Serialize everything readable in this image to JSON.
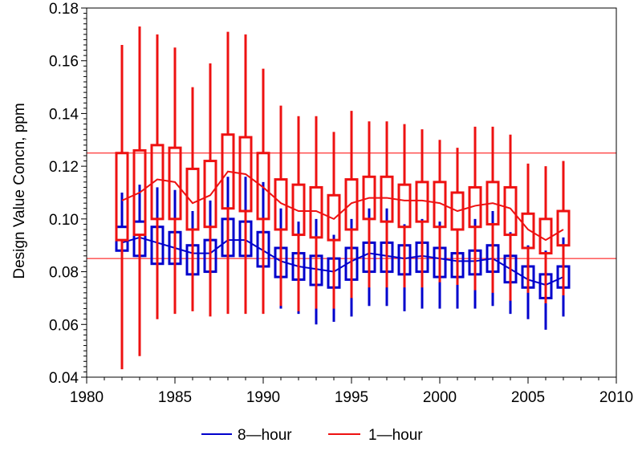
{
  "chart_data": {
    "type": "boxplot",
    "ylabel": "Design Value Concn, ppm",
    "xlabel": "",
    "xlim": [
      1980,
      2010
    ],
    "ylim": [
      0.04,
      0.18
    ],
    "x_ticks": [
      "1980",
      "1985",
      "1990",
      "1995",
      "2000",
      "2005",
      "2010"
    ],
    "y_ticks": [
      "0.04",
      "0.06",
      "0.08",
      "0.10",
      "0.12",
      "0.14",
      "0.16",
      "0.18"
    ],
    "grid": false,
    "legend_position": "bottom",
    "reference_lines": [
      {
        "y": 0.125,
        "color": "#ff0000"
      },
      {
        "y": 0.085,
        "color": "#ff0000"
      }
    ],
    "years": [
      1982,
      1983,
      1984,
      1985,
      1986,
      1987,
      1988,
      1989,
      1990,
      1991,
      1992,
      1993,
      1994,
      1995,
      1996,
      1997,
      1998,
      1999,
      2000,
      2001,
      2002,
      2003,
      2004,
      2005,
      2006,
      2007
    ],
    "series": [
      {
        "name": "8-hour",
        "color": "#0000cc",
        "q1": [
          0.088,
          0.086,
          0.083,
          0.083,
          0.079,
          0.08,
          0.086,
          0.086,
          0.082,
          0.078,
          0.077,
          0.075,
          0.074,
          0.077,
          0.08,
          0.08,
          0.079,
          0.08,
          0.078,
          0.078,
          0.079,
          0.08,
          0.076,
          0.074,
          0.07,
          0.074
        ],
        "q3": [
          0.097,
          0.099,
          0.097,
          0.095,
          0.09,
          0.092,
          0.1,
          0.099,
          0.095,
          0.089,
          0.087,
          0.086,
          0.085,
          0.089,
          0.091,
          0.091,
          0.09,
          0.091,
          0.089,
          0.087,
          0.088,
          0.09,
          0.086,
          0.082,
          0.079,
          0.082
        ],
        "whisker_low": [
          0.092,
          0.093,
          0.092,
          0.088,
          0.07,
          0.071,
          0.077,
          0.076,
          0.073,
          0.066,
          0.064,
          0.06,
          0.061,
          0.063,
          0.067,
          0.067,
          0.065,
          0.066,
          0.066,
          0.066,
          0.066,
          0.067,
          0.064,
          0.062,
          0.058,
          0.063
        ],
        "whisker_high": [
          0.11,
          0.113,
          0.112,
          0.111,
          0.103,
          0.107,
          0.116,
          0.116,
          0.114,
          0.104,
          0.099,
          0.1,
          0.094,
          0.1,
          0.104,
          0.104,
          0.098,
          0.1,
          0.099,
          0.095,
          0.1,
          0.103,
          0.095,
          0.09,
          0.088,
          0.093
        ],
        "median": [
          0.091,
          0.093,
          0.091,
          0.089,
          0.087,
          0.087,
          0.092,
          0.092,
          0.088,
          0.084,
          0.082,
          0.081,
          0.08,
          0.084,
          0.087,
          0.086,
          0.085,
          0.086,
          0.085,
          0.084,
          0.084,
          0.085,
          0.081,
          0.077,
          0.075,
          0.078
        ]
      },
      {
        "name": "1-hour",
        "color": "#ee1111",
        "q1": [
          0.092,
          0.094,
          0.1,
          0.1,
          0.096,
          0.097,
          0.104,
          0.103,
          0.1,
          0.096,
          0.094,
          0.093,
          0.092,
          0.096,
          0.1,
          0.099,
          0.097,
          0.099,
          0.097,
          0.096,
          0.097,
          0.098,
          0.094,
          0.089,
          0.087,
          0.09
        ],
        "q3": [
          0.125,
          0.126,
          0.128,
          0.127,
          0.119,
          0.122,
          0.132,
          0.131,
          0.125,
          0.115,
          0.113,
          0.112,
          0.109,
          0.115,
          0.116,
          0.116,
          0.113,
          0.114,
          0.114,
          0.11,
          0.112,
          0.114,
          0.112,
          0.102,
          0.1,
          0.103
        ],
        "whisker_low": [
          0.043,
          0.048,
          0.062,
          0.064,
          0.065,
          0.063,
          0.064,
          0.064,
          0.064,
          0.067,
          0.065,
          0.066,
          0.066,
          0.07,
          0.074,
          0.074,
          0.074,
          0.074,
          0.076,
          0.075,
          0.073,
          0.072,
          0.069,
          0.072,
          0.068,
          0.071
        ],
        "whisker_high": [
          0.166,
          0.173,
          0.17,
          0.165,
          0.15,
          0.159,
          0.171,
          0.17,
          0.157,
          0.143,
          0.139,
          0.139,
          0.133,
          0.141,
          0.137,
          0.137,
          0.136,
          0.134,
          0.13,
          0.127,
          0.135,
          0.135,
          0.132,
          0.121,
          0.12,
          0.122
        ],
        "median": [
          0.107,
          0.11,
          0.115,
          0.114,
          0.106,
          0.109,
          0.118,
          0.117,
          0.112,
          0.106,
          0.103,
          0.103,
          0.1,
          0.106,
          0.108,
          0.108,
          0.107,
          0.107,
          0.106,
          0.103,
          0.105,
          0.106,
          0.104,
          0.096,
          0.092,
          0.096
        ]
      }
    ]
  },
  "legend": [
    {
      "label": "8—hour",
      "color": "#0000cc"
    },
    {
      "label": "1—hour",
      "color": "#ee1111"
    }
  ]
}
